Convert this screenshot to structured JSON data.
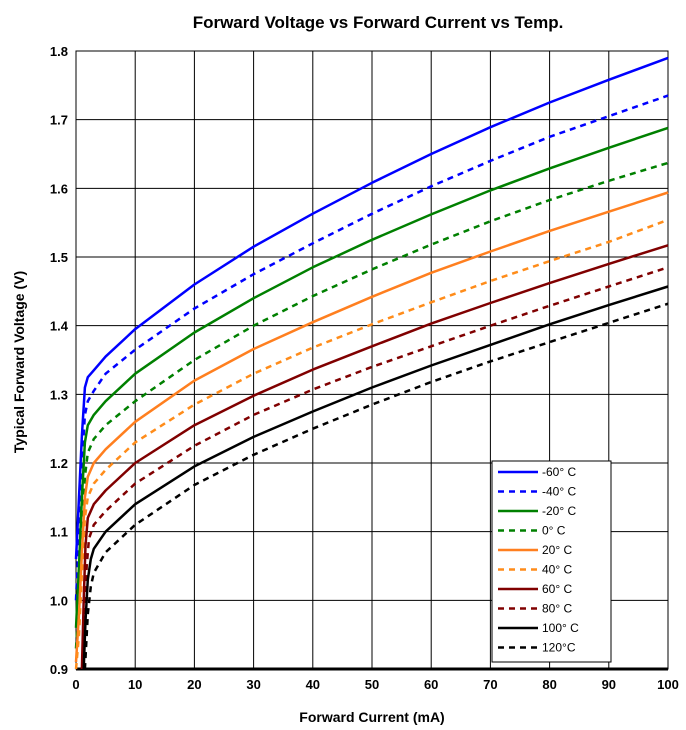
{
  "chart_data": {
    "type": "line",
    "title": "Forward Voltage vs Forward Current vs Temp.",
    "xlabel": "Forward Current (mA)",
    "ylabel": "Typical Forward Voltage (V)",
    "xlim": [
      0,
      100
    ],
    "ylim": [
      0.9,
      1.8
    ],
    "x_ticks": [
      "0",
      "10",
      "20",
      "30",
      "40",
      "50",
      "60",
      "70",
      "80",
      "90",
      "100"
    ],
    "y_ticks": [
      "0.9",
      "1.0",
      "1.1",
      "1.2",
      "1.3",
      "1.4",
      "1.5",
      "1.6",
      "1.7",
      "1.8"
    ],
    "grid": true,
    "legend_position": "bottom-right",
    "series": [
      {
        "name": "-60° C",
        "color": "#0000ff",
        "dashed": false,
        "x": [
          0,
          0.5,
          1,
          1.5,
          2,
          3,
          5,
          10,
          20,
          30,
          40,
          50,
          60,
          70,
          80,
          90,
          100
        ],
        "y": [
          1.06,
          1.15,
          1.24,
          1.31,
          1.325,
          1.335,
          1.355,
          1.395,
          1.46,
          1.515,
          1.563,
          1.608,
          1.65,
          1.689,
          1.725,
          1.758,
          1.79
        ]
      },
      {
        "name": "-40° C",
        "color": "#0000ff",
        "dashed": true,
        "x": [
          0,
          0.5,
          1,
          1.5,
          2,
          3,
          5,
          10,
          20,
          30,
          40,
          50,
          60,
          70,
          80,
          90,
          100
        ],
        "y": [
          1.0,
          1.1,
          1.2,
          1.27,
          1.29,
          1.305,
          1.33,
          1.365,
          1.425,
          1.475,
          1.52,
          1.563,
          1.603,
          1.64,
          1.675,
          1.705,
          1.735
        ]
      },
      {
        "name": "-20° C",
        "color": "#008000",
        "dashed": false,
        "x": [
          0,
          0.5,
          1,
          1.5,
          2,
          3,
          5,
          10,
          20,
          30,
          40,
          50,
          60,
          70,
          80,
          90,
          100
        ],
        "y": [
          0.96,
          1.05,
          1.15,
          1.23,
          1.255,
          1.27,
          1.29,
          1.33,
          1.39,
          1.44,
          1.485,
          1.525,
          1.562,
          1.597,
          1.629,
          1.659,
          1.688
        ]
      },
      {
        "name": "0° C",
        "color": "#008000",
        "dashed": true,
        "x": [
          0,
          0.5,
          1,
          1.5,
          2,
          3,
          5,
          10,
          20,
          30,
          40,
          50,
          60,
          70,
          80,
          90,
          100
        ],
        "y": [
          0.93,
          1.0,
          1.1,
          1.18,
          1.215,
          1.235,
          1.255,
          1.29,
          1.35,
          1.4,
          1.443,
          1.482,
          1.518,
          1.552,
          1.583,
          1.611,
          1.637
        ]
      },
      {
        "name": "20° C",
        "color": "#ff7f1f",
        "dashed": false,
        "x": [
          0,
          0.5,
          1,
          1.5,
          2,
          3,
          5,
          10,
          20,
          30,
          40,
          50,
          60,
          70,
          80,
          90,
          100
        ],
        "y": [
          0.91,
          0.98,
          1.07,
          1.15,
          1.18,
          1.2,
          1.22,
          1.26,
          1.32,
          1.366,
          1.405,
          1.442,
          1.477,
          1.508,
          1.538,
          1.566,
          1.594
        ]
      },
      {
        "name": "40° C",
        "color": "#ff8c1a",
        "dashed": true,
        "x": [
          0,
          0.5,
          1,
          1.5,
          2,
          3,
          5,
          10,
          20,
          30,
          40,
          50,
          60,
          70,
          80,
          90,
          100
        ],
        "y": [
          0.9,
          0.95,
          1.04,
          1.12,
          1.15,
          1.17,
          1.19,
          1.23,
          1.285,
          1.33,
          1.368,
          1.402,
          1.434,
          1.465,
          1.494,
          1.522,
          1.554
        ]
      },
      {
        "name": "60° C",
        "color": "#800000",
        "dashed": false,
        "x": [
          1,
          1.3,
          1.6,
          2,
          3,
          5,
          10,
          20,
          30,
          40,
          50,
          60,
          70,
          80,
          90,
          100
        ],
        "y": [
          0.9,
          1.0,
          1.08,
          1.12,
          1.14,
          1.16,
          1.2,
          1.255,
          1.298,
          1.336,
          1.37,
          1.403,
          1.433,
          1.462,
          1.49,
          1.517
        ]
      },
      {
        "name": "80° C",
        "color": "#800000",
        "dashed": true,
        "x": [
          1.2,
          1.5,
          1.8,
          2.2,
          3,
          5,
          10,
          20,
          30,
          40,
          50,
          60,
          70,
          80,
          90,
          100
        ],
        "y": [
          0.9,
          0.98,
          1.05,
          1.09,
          1.11,
          1.13,
          1.17,
          1.225,
          1.27,
          1.307,
          1.34,
          1.37,
          1.4,
          1.429,
          1.457,
          1.485
        ]
      },
      {
        "name": "100° C",
        "color": "#000000",
        "dashed": false,
        "x": [
          1.3,
          1.6,
          2,
          2.5,
          3,
          5,
          10,
          20,
          30,
          40,
          50,
          60,
          70,
          80,
          90,
          100
        ],
        "y": [
          0.9,
          0.97,
          1.03,
          1.06,
          1.075,
          1.1,
          1.14,
          1.195,
          1.238,
          1.275,
          1.31,
          1.342,
          1.372,
          1.402,
          1.43,
          1.457
        ]
      },
      {
        "name": "120°C",
        "color": "#000000",
        "dashed": true,
        "x": [
          1.5,
          2,
          2.5,
          3,
          5,
          10,
          20,
          30,
          40,
          50,
          60,
          70,
          80,
          90,
          100
        ],
        "y": [
          0.9,
          0.98,
          1.02,
          1.04,
          1.07,
          1.11,
          1.168,
          1.212,
          1.25,
          1.285,
          1.318,
          1.348,
          1.376,
          1.404,
          1.432
        ]
      }
    ]
  }
}
